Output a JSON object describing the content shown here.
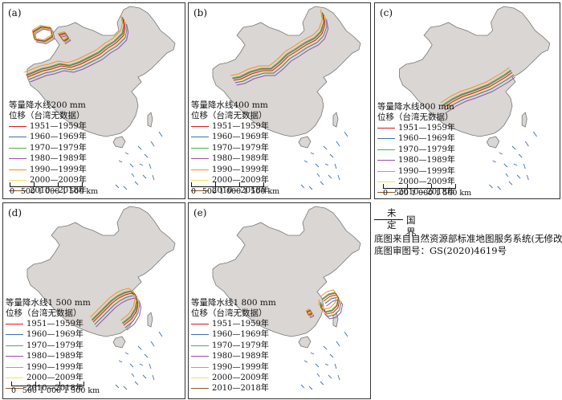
{
  "map_legend_years": [
    {
      "label": "1951—1959年",
      "color": "#d7191c"
    },
    {
      "label": "1960—1969年",
      "color": "#3a6fb5"
    },
    {
      "label": "1970—1979年",
      "color": "#4daf4a"
    },
    {
      "label": "1980—1989年",
      "color": "#984ea3"
    },
    {
      "label": "1990—1999年",
      "color": "#ff8c1a"
    },
    {
      "label": "2000—2009年",
      "color": "#f2e35b"
    },
    {
      "label": "2010—2018年",
      "color": "#8c5a2b"
    }
  ],
  "panels": [
    {
      "label": "(a)",
      "title_line1": "等量降水线200 mm",
      "title_line2": "位移（台湾无数据）",
      "isohyet_mm": 200
    },
    {
      "label": "(b)",
      "title_line1": "等量降水线400 mm",
      "title_line2": "位移（台湾无数据）",
      "isohyet_mm": 400
    },
    {
      "label": "(c)",
      "title_line1": "等量降水线800 mm",
      "title_line2": "位移（台湾无数据）",
      "isohyet_mm": 800
    },
    {
      "label": "(d)",
      "title_line1": "等量降水线1 500 mm",
      "title_line2": "位移（台湾无数据）",
      "isohyet_mm": 1500
    },
    {
      "label": "(e)",
      "title_line1": "等量降水线1 800 mm",
      "title_line2": "位移（台湾无数据）",
      "isohyet_mm": 1800
    }
  ],
  "scale_bar": {
    "text": "0  500 1 000 1 500 km",
    "max_km": 1500
  },
  "boundary_legend": {
    "undefined_label": "未定",
    "boundary_label": "国界"
  },
  "source_lines": [
    "底图来自自然资源部标准地图服务系统(无修改)",
    "底图审图号：GS(2020)4619号"
  ],
  "colors": {
    "land": "#d9d6d3",
    "outline": "#777777",
    "frame": "#333333"
  }
}
